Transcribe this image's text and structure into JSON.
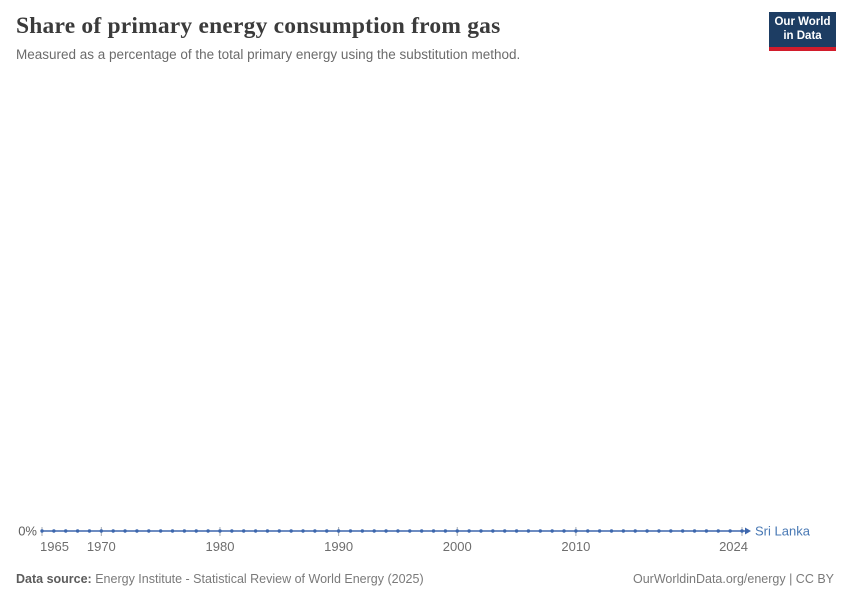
{
  "header": {
    "title": "Share of primary energy consumption from gas",
    "subtitle": "Measured as a percentage of the total primary energy using the substitution method.",
    "logo": {
      "line1": "Our World",
      "line2": "in Data"
    }
  },
  "chart_data": {
    "type": "line",
    "title": "Share of primary energy consumption from gas",
    "subtitle": "Measured as a percentage of the total primary energy using the substitution method.",
    "unit": "%",
    "xlabel": "",
    "ylabel": "",
    "xlim": [
      1965,
      2024
    ],
    "ylim": [
      0,
      0
    ],
    "grid": false,
    "legend_position": "end-of-line",
    "x_ticks": [
      1965,
      1970,
      1980,
      1990,
      2000,
      2010,
      2024
    ],
    "y_tick_labels": [
      "0%"
    ],
    "series": [
      {
        "name": "Sri Lanka",
        "color": "#3d67ad",
        "x": [
          1965,
          1966,
          1967,
          1968,
          1969,
          1970,
          1971,
          1972,
          1973,
          1974,
          1975,
          1976,
          1977,
          1978,
          1979,
          1980,
          1981,
          1982,
          1983,
          1984,
          1985,
          1986,
          1987,
          1988,
          1989,
          1990,
          1991,
          1992,
          1993,
          1994,
          1995,
          1996,
          1997,
          1998,
          1999,
          2000,
          2001,
          2002,
          2003,
          2004,
          2005,
          2006,
          2007,
          2008,
          2009,
          2010,
          2011,
          2012,
          2013,
          2014,
          2015,
          2016,
          2017,
          2018,
          2019,
          2020,
          2021,
          2022,
          2023,
          2024
        ],
        "values": [
          0,
          0,
          0,
          0,
          0,
          0,
          0,
          0,
          0,
          0,
          0,
          0,
          0,
          0,
          0,
          0,
          0,
          0,
          0,
          0,
          0,
          0,
          0,
          0,
          0,
          0,
          0,
          0,
          0,
          0,
          0,
          0,
          0,
          0,
          0,
          0,
          0,
          0,
          0,
          0,
          0,
          0,
          0,
          0,
          0,
          0,
          0,
          0,
          0,
          0,
          0,
          0,
          0,
          0,
          0,
          0,
          0,
          0,
          0,
          0
        ]
      }
    ]
  },
  "footer": {
    "datasource_label": "Data source:",
    "datasource_text": "Energy Institute - Statistical Review of World Energy (2025)",
    "credit": "OurWorldinData.org/energy | CC BY"
  },
  "colors": {
    "line": "#3d67ad",
    "entity_label": "#4878b4",
    "axis_text": "#6e6e6e",
    "y_axis_text": "#5e5e5e",
    "tick_mark": "#a5abb3",
    "logo_bg": "#1d3d63",
    "logo_accent": "#d21c2b"
  }
}
